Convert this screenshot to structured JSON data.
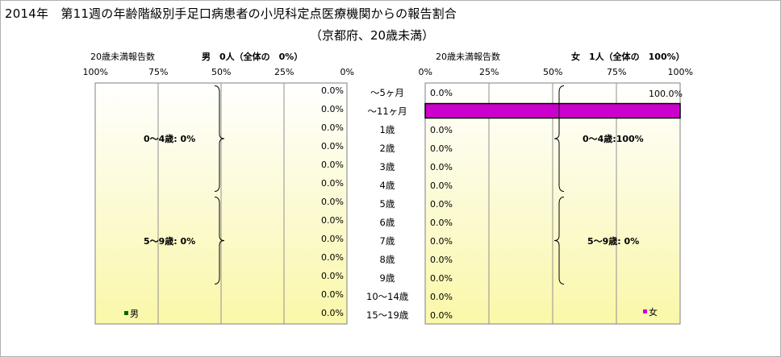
{
  "title": "2014年　第11週の年齢階級別手足口病患者の小児科定点医療機関からの報告割合",
  "subtitle": "（京都府、20歳未満）",
  "colors": {
    "female_bar": "#CC00CC",
    "male_bar": "#006600",
    "plot_bg_top": "#FFFFFF",
    "plot_bg_bottom": "#FAF8A8",
    "gridline": "#909090"
  },
  "chart_data": [
    {
      "type": "bar",
      "orientation": "horizontal",
      "panel": "male",
      "direction": "right-to-left",
      "header_label": "20歳未満報告数",
      "header_value": "男　0人（全体の　0%）",
      "xticks": [
        "100%",
        "75%",
        "50%",
        "25%",
        "0%"
      ],
      "xlim": [
        0,
        100
      ],
      "grid": true,
      "categories": [
        "～5ヶ月",
        "～11ヶ月",
        "1歳",
        "2歳",
        "3歳",
        "4歳",
        "5歳",
        "6歳",
        "7歳",
        "8歳",
        "9歳",
        "10～14歳",
        "15～19歳"
      ],
      "values": [
        0,
        0,
        0,
        0,
        0,
        0,
        0,
        0,
        0,
        0,
        0,
        0,
        0
      ],
      "value_labels": [
        "0.0%",
        "0.0%",
        "0.0%",
        "0.0%",
        "0.0%",
        "0.0%",
        "0.0%",
        "0.0%",
        "0.0%",
        "0.0%",
        "0.0%",
        "0.0%",
        "0.0%"
      ],
      "legend": {
        "label": "男",
        "position": "bottom-left"
      },
      "summaries": [
        {
          "label": "0～4歳:  0%",
          "from": 0,
          "to": 5
        },
        {
          "label": "5～9歳:  0%",
          "from": 6,
          "to": 10
        }
      ]
    },
    {
      "type": "bar",
      "orientation": "horizontal",
      "panel": "female",
      "direction": "left-to-right",
      "header_label": "20歳未満報告数",
      "header_value": "女　1人（全体の　100%）",
      "xticks": [
        "0%",
        "25%",
        "50%",
        "75%",
        "100%"
      ],
      "xlim": [
        0,
        100
      ],
      "grid": true,
      "categories": [
        "～5ヶ月",
        "～11ヶ月",
        "1歳",
        "2歳",
        "3歳",
        "4歳",
        "5歳",
        "6歳",
        "7歳",
        "8歳",
        "9歳",
        "10～14歳",
        "15～19歳"
      ],
      "values": [
        0,
        100,
        0,
        0,
        0,
        0,
        0,
        0,
        0,
        0,
        0,
        0,
        0
      ],
      "value_labels": [
        "0.0%",
        "100.0%",
        "0.0%",
        "0.0%",
        "0.0%",
        "0.0%",
        "0.0%",
        "0.0%",
        "0.0%",
        "0.0%",
        "0.0%",
        "0.0%",
        "0.0%"
      ],
      "legend": {
        "label": "女",
        "position": "bottom-right"
      },
      "summaries": [
        {
          "label": "0～4歳:100%",
          "from": 0,
          "to": 5
        },
        {
          "label": "5～9歳:  0%",
          "from": 6,
          "to": 10
        }
      ]
    }
  ]
}
